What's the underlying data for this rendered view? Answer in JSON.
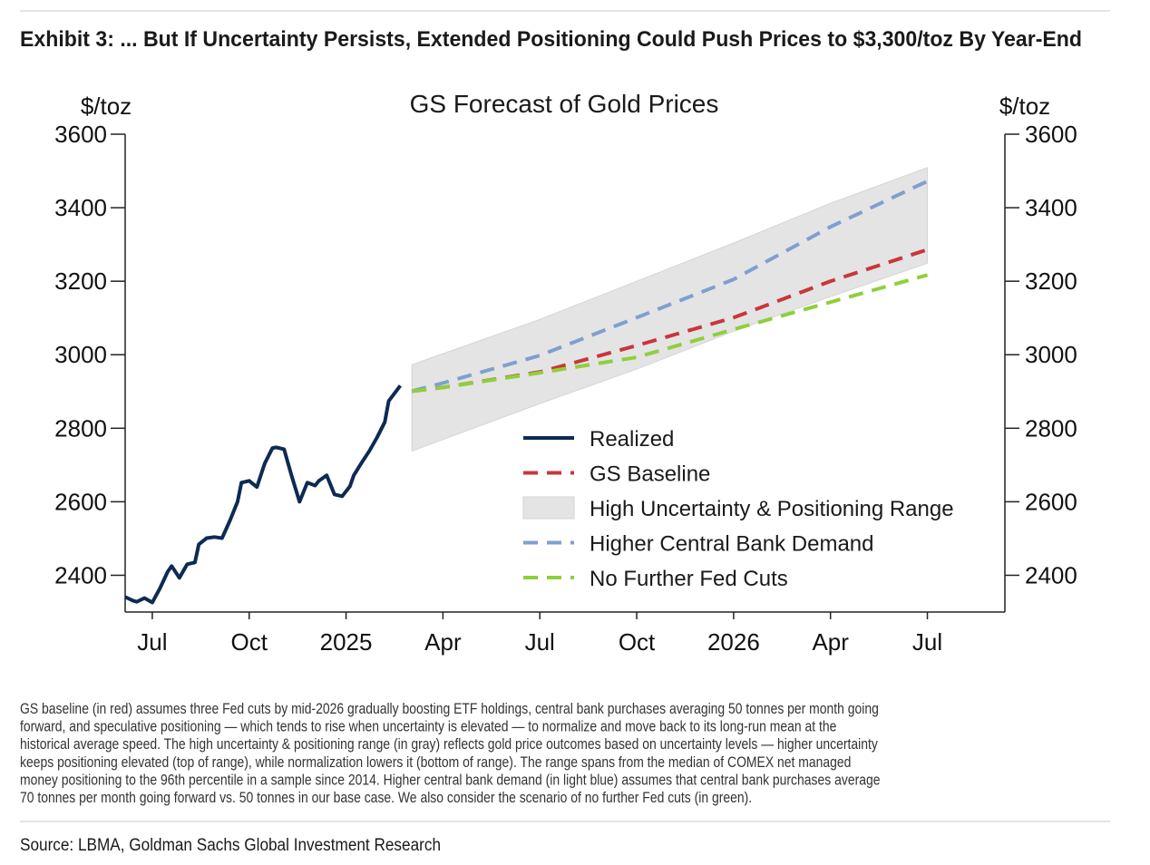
{
  "header": {
    "title": "Exhibit 3: ... But If Uncertainty Persists, Extended Positioning Could Push Prices to $3,300/toz By Year-End"
  },
  "chart_data": {
    "type": "line",
    "title": "GS Forecast of Gold Prices",
    "y_label": "$/toz",
    "y2_label": "$/toz",
    "xlim": [
      2024.43,
      2026.7
    ],
    "xticks": [
      {
        "value": 2024.5,
        "label": "Jul"
      },
      {
        "value": 2024.75,
        "label": "Oct"
      },
      2025,
      {
        "value": 2025.25,
        "label": "Apr"
      },
      {
        "value": 2025.5,
        "label": "Jul"
      },
      {
        "value": 2025.75,
        "label": "Oct"
      },
      2026,
      {
        "value": 2026.25,
        "label": "Apr"
      },
      {
        "value": 2026.5,
        "label": "Jul"
      }
    ],
    "ylim": [
      2300,
      3600
    ],
    "yticks": [
      2400,
      2600,
      2800,
      3000,
      3200,
      3400,
      3600
    ],
    "y2lim": [
      2300,
      3600
    ],
    "y2ticks": [
      2400,
      2600,
      2800,
      3000,
      3200,
      3400,
      3600
    ],
    "series": [
      {
        "name": "Realized",
        "color": "#0d2b52",
        "dash": false,
        "x": [
          2024.43,
          2024.45,
          2024.46,
          2024.48,
          2024.5,
          2024.52,
          2024.54,
          2024.55,
          2024.57,
          2024.59,
          2024.61,
          2024.62,
          2024.64,
          2024.66,
          2024.68,
          2024.7,
          2024.72,
          2024.73,
          2024.75,
          2024.77,
          2024.79,
          2024.81,
          2024.82,
          2024.84,
          2024.86,
          2024.88,
          2024.9,
          2024.92,
          2024.93,
          2024.95,
          2024.97,
          2024.99,
          2025.01,
          2025.02,
          2025.04,
          2025.06,
          2025.08,
          2025.1,
          2025.11,
          2025.14
        ],
        "values": [
          2341,
          2331,
          2328,
          2338,
          2326,
          2365,
          2410,
          2425,
          2393,
          2430,
          2435,
          2484,
          2501,
          2504,
          2501,
          2548,
          2600,
          2652,
          2657,
          2640,
          2704,
          2746,
          2748,
          2743,
          2669,
          2600,
          2652,
          2644,
          2657,
          2672,
          2620,
          2615,
          2642,
          2672,
          2706,
          2738,
          2775,
          2817,
          2874,
          2916
        ]
      },
      {
        "name": "GS Baseline",
        "color": "#c8373a",
        "dash": true,
        "x": [
          2025.17,
          2025.25,
          2025.5,
          2025.75,
          2026.0,
          2026.25,
          2026.5
        ],
        "values": [
          2901,
          2911,
          2953,
          3025,
          3101,
          3200,
          3286
        ]
      },
      {
        "name": "High Uncertainty & Positioning Range",
        "color": "#e4e4e4",
        "type": "area",
        "x": [
          2025.17,
          2025.5,
          2025.75,
          2026.0,
          2026.25,
          2026.5
        ],
        "low": [
          2738,
          2867,
          2961,
          3064,
          3158,
          3249
        ],
        "high": [
          2973,
          3096,
          3200,
          3304,
          3412,
          3509
        ]
      },
      {
        "name": "Higher Central Bank Demand",
        "color": "#7f9fcf",
        "dash": true,
        "x": [
          2025.17,
          2025.25,
          2025.5,
          2025.75,
          2026.0,
          2026.25,
          2026.5
        ],
        "values": [
          2901,
          2923,
          2998,
          3101,
          3205,
          3348,
          3472
        ]
      },
      {
        "name": "No Further Fed Cuts",
        "color": "#8fcf3c",
        "dash": true,
        "x": [
          2025.17,
          2025.25,
          2025.5,
          2025.75,
          2026.0,
          2026.25,
          2026.5
        ],
        "values": [
          2901,
          2911,
          2951,
          2993,
          3069,
          3143,
          3217
        ]
      }
    ]
  },
  "note": [
    "GS baseline (in red) assumes three Fed cuts by mid-2026 gradually boosting ETF holdings, central bank purchases averaging 50 tonnes per month going",
    "forward, and speculative positioning — which tends to rise when uncertainty is elevated — to normalize and move back to its long-run mean at the",
    "historical average speed. The high uncertainty & positioning range (in gray) reflects gold price outcomes based on uncertainty levels — higher uncertainty",
    "keeps positioning elevated (top of range), while normalization lowers it (bottom of range). The range spans from the median of COMEX net managed",
    "money positioning to the 96th percentile in a sample since 2014. Higher central bank demand (in light blue) assumes that central bank purchases average",
    "70 tonnes per month going forward vs. 50 tonnes in our base case. We also consider the scenario of no further Fed cuts (in green)."
  ],
  "source": "Source: LBMA, Goldman Sachs Global Investment Research"
}
